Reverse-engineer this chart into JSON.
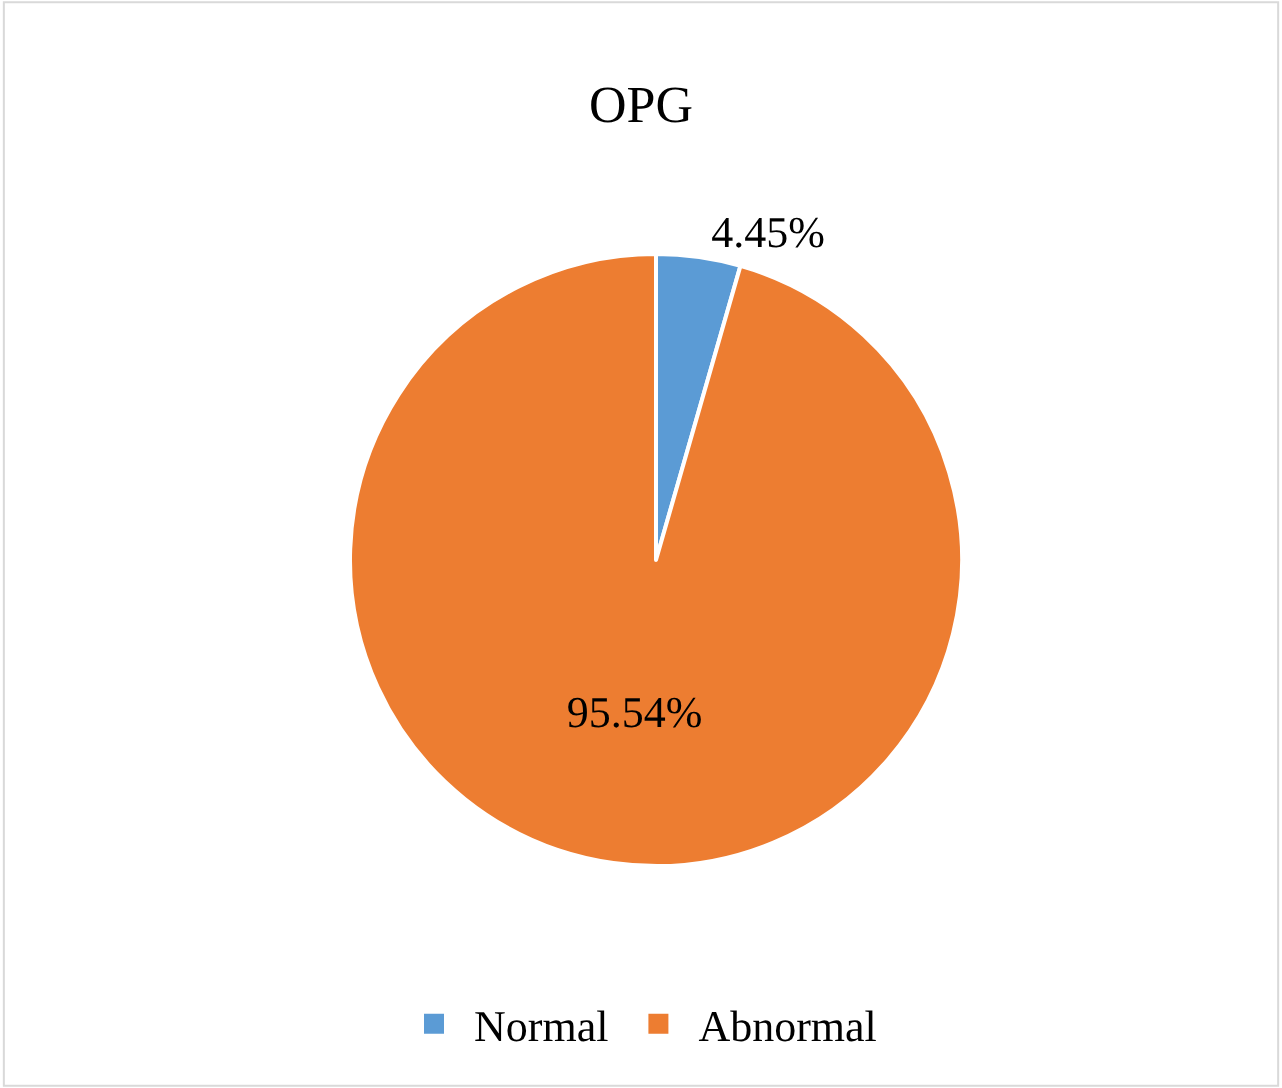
{
  "chart_data": {
    "type": "pie",
    "title": "OPG",
    "categories": [
      "Normal",
      "Abnormal"
    ],
    "values": [
      4.45,
      95.54
    ],
    "value_labels": [
      "4.45%",
      "95.54%"
    ],
    "colors": [
      "#5b9bd5",
      "#ed7d31"
    ],
    "legend": "bottom"
  }
}
